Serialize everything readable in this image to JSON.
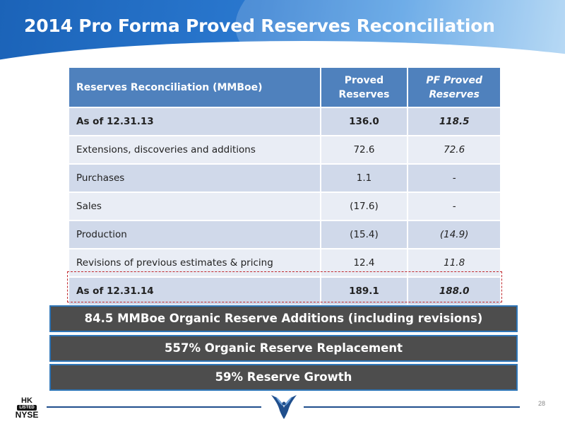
{
  "header": {
    "title": "2014 Pro Forma Proved Reserves Reconciliation"
  },
  "table": {
    "columns": [
      "Reserves Reconciliation (MMBoe)",
      "Proved Reserves",
      "PF Proved Reserves"
    ],
    "rows": [
      {
        "label": "As of 12.31.13",
        "proved": "136.0",
        "pf": "118.5"
      },
      {
        "label": "Extensions, discoveries and additions",
        "proved": "72.6",
        "pf": "72.6"
      },
      {
        "label": "Purchases",
        "proved": "1.1",
        "pf": "-"
      },
      {
        "label": "Sales",
        "proved": "(17.6)",
        "pf": "-"
      },
      {
        "label": "Production",
        "proved": "(15.4)",
        "pf": "(14.9)"
      },
      {
        "label": "Revisions of previous estimates & pricing",
        "proved": "12.4",
        "pf": "11.8"
      },
      {
        "label": "As of 12.31.14",
        "proved": "189.1",
        "pf": "188.0"
      }
    ]
  },
  "summary": [
    "84.5 MMBoe Organic Reserve Additions (including revisions)",
    "557% Organic Reserve Replacement",
    "59% Reserve Growth"
  ],
  "footer": {
    "listing_hk": "HK",
    "listing_listed": "LISTED",
    "listing_nyse": "NYSE",
    "logo_icon": "hawk-icon",
    "page_number": "28"
  },
  "colors": {
    "header_blue": "#1b63b8",
    "table_header": "#4f81bd",
    "row_dark": "#d0d9ea",
    "row_light": "#e9edf5",
    "bar_fill": "#4d4d4d",
    "bar_border": "#2e75b6",
    "highlight_dashed": "#c0282d"
  }
}
